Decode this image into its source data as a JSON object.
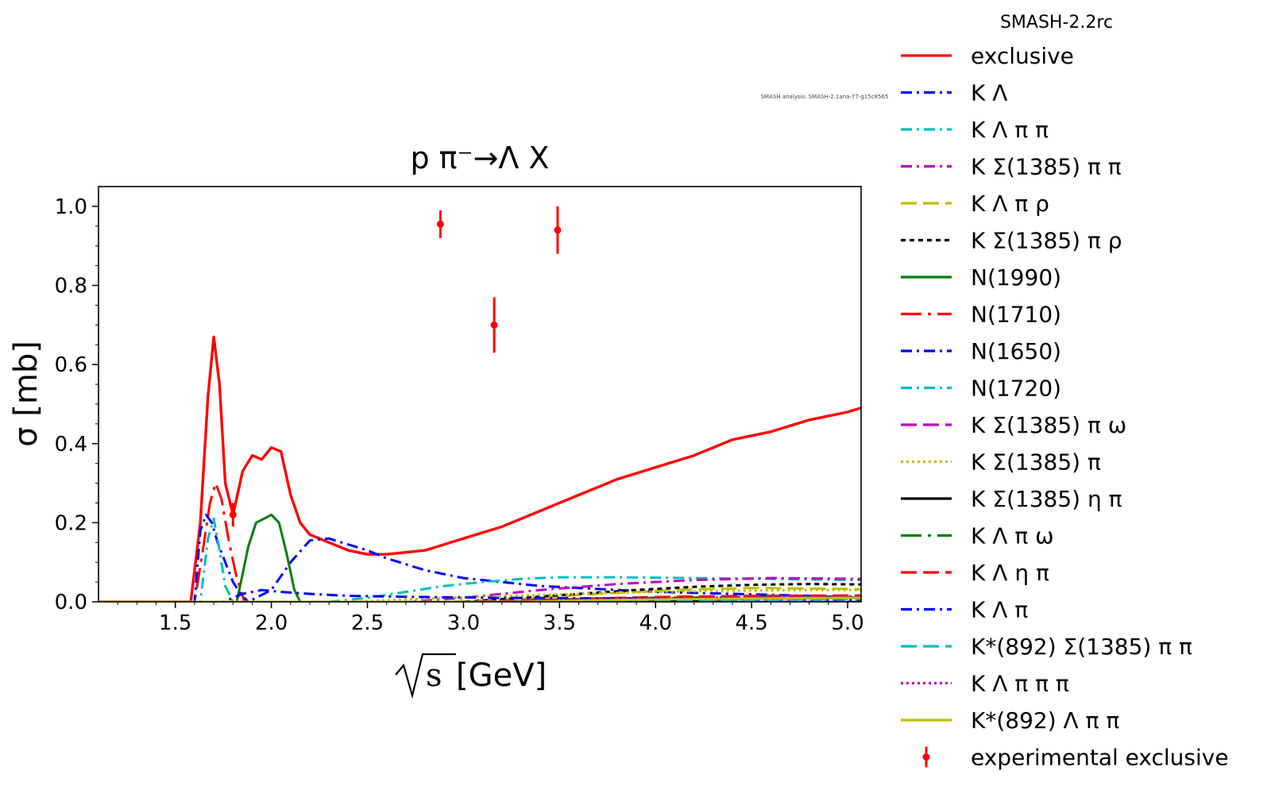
{
  "version_label": "SMASH-2.2rc",
  "analysis_label": "SMASH analysis: SMASH-2.1ana-77-g15c8565",
  "chart_data": {
    "type": "line",
    "title": "p π⁻→Λ X",
    "xlabel": "[GeV]",
    "xlabel_sqrt": "s",
    "ylabel": "σ [mb]",
    "xlim": [
      1.1,
      5.07
    ],
    "ylim": [
      0.0,
      1.05
    ],
    "xticks": [
      1.5,
      2.0,
      2.5,
      3.0,
      3.5,
      4.0,
      4.5,
      5.0
    ],
    "xtick_labels": [
      "1.5",
      "2.0",
      "2.5",
      "3.0",
      "3.5",
      "4.0",
      "4.5",
      "5.0"
    ],
    "yticks": [
      0.0,
      0.2,
      0.4,
      0.6,
      0.8,
      1.0
    ],
    "ytick_labels": [
      "0.0",
      "0.2",
      "0.4",
      "0.6",
      "0.8",
      "1.0"
    ],
    "grid": false,
    "legend_placement": "outside right",
    "series": [
      {
        "name": "exclusive",
        "color": "#ff0000",
        "dash": "solid",
        "x": [
          1.1,
          1.58,
          1.63,
          1.67,
          1.7,
          1.73,
          1.76,
          1.8,
          1.85,
          1.9,
          1.95,
          2.0,
          2.05,
          2.1,
          2.15,
          2.2,
          2.3,
          2.4,
          2.5,
          2.6,
          2.7,
          2.8,
          3.0,
          3.2,
          3.4,
          3.6,
          3.8,
          4.0,
          4.2,
          4.4,
          4.6,
          4.8,
          5.0,
          5.07
        ],
        "y": [
          0.0,
          0.0,
          0.2,
          0.52,
          0.67,
          0.55,
          0.3,
          0.22,
          0.33,
          0.37,
          0.36,
          0.39,
          0.38,
          0.27,
          0.2,
          0.17,
          0.15,
          0.13,
          0.12,
          0.12,
          0.125,
          0.13,
          0.16,
          0.19,
          0.23,
          0.27,
          0.31,
          0.34,
          0.37,
          0.41,
          0.43,
          0.46,
          0.48,
          0.49
        ]
      },
      {
        "name": "K Λ",
        "color": "#0000ff",
        "dash": "dashdot",
        "x": [
          1.1,
          1.85,
          1.9,
          2.0,
          2.1,
          2.2,
          2.3,
          2.4,
          2.5,
          2.6,
          2.8,
          3.0,
          3.2,
          3.4,
          3.6,
          3.8,
          4.0,
          4.4,
          4.8,
          5.07
        ],
        "y": [
          0.0,
          0.0,
          0.005,
          0.03,
          0.1,
          0.155,
          0.16,
          0.145,
          0.13,
          0.11,
          0.08,
          0.06,
          0.05,
          0.04,
          0.035,
          0.03,
          0.025,
          0.02,
          0.015,
          0.01
        ]
      },
      {
        "name": "K Λ π π",
        "color": "#00bfbf",
        "dash": "dashdot",
        "x": [
          1.1,
          2.3,
          2.5,
          2.7,
          2.9,
          3.1,
          3.3,
          3.5,
          3.8,
          4.2,
          4.6,
          5.07
        ],
        "y": [
          0.0,
          0.0,
          0.01,
          0.025,
          0.04,
          0.05,
          0.058,
          0.062,
          0.062,
          0.06,
          0.058,
          0.055
        ]
      },
      {
        "name": "K Σ(1385) π π",
        "color": "#bf00bf",
        "dash": "dashdot",
        "x": [
          1.1,
          2.7,
          3.0,
          3.4,
          3.8,
          4.2,
          4.6,
          5.07
        ],
        "y": [
          0.0,
          0.0,
          0.01,
          0.03,
          0.045,
          0.055,
          0.06,
          0.058
        ]
      },
      {
        "name": "K Λ π ρ",
        "color": "#bfbf00",
        "dash": "longdash",
        "x": [
          1.1,
          2.9,
          3.3,
          3.7,
          4.1,
          4.5,
          4.9,
          5.07
        ],
        "y": [
          0.0,
          0.0,
          0.008,
          0.02,
          0.03,
          0.035,
          0.033,
          0.032
        ]
      },
      {
        "name": "K Σ(1385) π ρ",
        "color": "#000000",
        "dash": "dashed",
        "x": [
          1.1,
          3.0,
          3.3,
          3.6,
          3.9,
          4.2,
          4.5,
          4.8,
          5.07
        ],
        "y": [
          0.0,
          0.0,
          0.01,
          0.02,
          0.03,
          0.038,
          0.043,
          0.045,
          0.044
        ]
      },
      {
        "name": "N(1990)",
        "color": "#008000",
        "dash": "solid",
        "x": [
          1.1,
          1.82,
          1.88,
          1.92,
          1.96,
          2.0,
          2.04,
          2.08,
          2.12,
          2.15,
          5.07
        ],
        "y": [
          0.0,
          0.0,
          0.14,
          0.2,
          0.21,
          0.22,
          0.2,
          0.12,
          0.03,
          0.0,
          0.0
        ]
      },
      {
        "name": "N(1710)",
        "color": "#ff0000",
        "dash": "dashdot2",
        "x": [
          1.1,
          1.6,
          1.64,
          1.68,
          1.71,
          1.74,
          1.78,
          1.82,
          1.86,
          5.07
        ],
        "y": [
          0.0,
          0.0,
          0.12,
          0.25,
          0.3,
          0.26,
          0.15,
          0.06,
          0.0,
          0.0
        ]
      },
      {
        "name": "N(1650)",
        "color": "#0000ff",
        "dash": "dashdot",
        "x": [
          1.1,
          1.6,
          1.63,
          1.66,
          1.69,
          1.72,
          1.76,
          1.8,
          1.84,
          1.88,
          5.07
        ],
        "y": [
          0.0,
          0.0,
          0.18,
          0.22,
          0.2,
          0.15,
          0.1,
          0.05,
          0.02,
          0.0,
          0.0
        ]
      },
      {
        "name": "N(1720)",
        "color": "#00bfbf",
        "dash": "dashdot",
        "x": [
          1.1,
          1.63,
          1.67,
          1.7,
          1.73,
          1.76,
          1.8,
          5.07
        ],
        "y": [
          0.0,
          0.0,
          0.16,
          0.21,
          0.13,
          0.04,
          0.0,
          0.0
        ]
      },
      {
        "name": "K Σ(1385) π ω",
        "color": "#bf00bf",
        "dash": "longdash",
        "x": [
          1.1,
          3.4,
          3.8,
          4.2,
          4.6,
          5.07
        ],
        "y": [
          0.0,
          0.0,
          0.005,
          0.01,
          0.012,
          0.012
        ]
      },
      {
        "name": "K Σ(1385) π",
        "color": "#bfbf00",
        "dash": "dotted",
        "x": [
          1.1,
          2.4,
          2.8,
          3.2,
          3.6,
          4.0,
          4.4,
          4.8,
          5.07
        ],
        "y": [
          0.0,
          0.0,
          0.008,
          0.015,
          0.02,
          0.025,
          0.028,
          0.03,
          0.03
        ]
      },
      {
        "name": "K Σ(1385) η π",
        "color": "#000000",
        "dash": "solid",
        "x": [
          1.1,
          3.5,
          4.0,
          4.5,
          5.07
        ],
        "y": [
          0.0,
          0.0,
          0.004,
          0.008,
          0.01
        ]
      },
      {
        "name": "K Λ π ω",
        "color": "#008000",
        "dash": "dashdot2",
        "x": [
          1.1,
          3.2,
          3.6,
          4.0,
          4.5,
          5.07
        ],
        "y": [
          0.0,
          0.0,
          0.006,
          0.01,
          0.012,
          0.012
        ]
      },
      {
        "name": "K Λ η π",
        "color": "#ff0000",
        "dash": "longdash",
        "x": [
          1.1,
          3.0,
          3.5,
          4.0,
          4.5,
          5.07
        ],
        "y": [
          0.0,
          0.0,
          0.006,
          0.012,
          0.015,
          0.016
        ]
      },
      {
        "name": "K Λ π",
        "color": "#0000ff",
        "dash": "dashdot",
        "x": [
          1.1,
          1.75,
          1.85,
          1.95,
          2.05,
          2.2,
          2.4,
          2.8,
          3.2,
          3.6,
          4.0,
          4.5,
          5.07
        ],
        "y": [
          0.0,
          0.0,
          0.02,
          0.03,
          0.025,
          0.02,
          0.015,
          0.012,
          0.01,
          0.009,
          0.008,
          0.007,
          0.006
        ]
      },
      {
        "name": "K*(892) Σ(1385) π π",
        "color": "#00bfbf",
        "dash": "longdash",
        "x": [
          1.1,
          3.6,
          4.0,
          4.5,
          5.07
        ],
        "y": [
          0.0,
          0.0,
          0.003,
          0.006,
          0.008
        ]
      },
      {
        "name": "K Λ π π π",
        "color": "#bf00bf",
        "dash": "dotted",
        "x": [
          1.1,
          3.0,
          3.5,
          4.0,
          4.5,
          5.07
        ],
        "y": [
          0.0,
          0.0,
          0.004,
          0.008,
          0.012,
          0.014
        ]
      },
      {
        "name": "K*(892) Λ π π",
        "color": "#bfbf00",
        "dash": "solid",
        "x": [
          1.1,
          3.3,
          3.7,
          4.2,
          4.7,
          5.07
        ],
        "y": [
          0.0,
          0.0,
          0.004,
          0.007,
          0.009,
          0.01
        ]
      }
    ],
    "experimental": {
      "name": "experimental exclusive",
      "color": "#ff0000",
      "points": [
        {
          "x": 1.8,
          "y": 0.22,
          "yerr": 0.03
        },
        {
          "x": 2.88,
          "y": 0.955,
          "yerr": 0.035
        },
        {
          "x": 3.16,
          "y": 0.7,
          "yerr": 0.07
        },
        {
          "x": 3.49,
          "y": 0.94,
          "yerr": 0.06
        }
      ]
    }
  }
}
